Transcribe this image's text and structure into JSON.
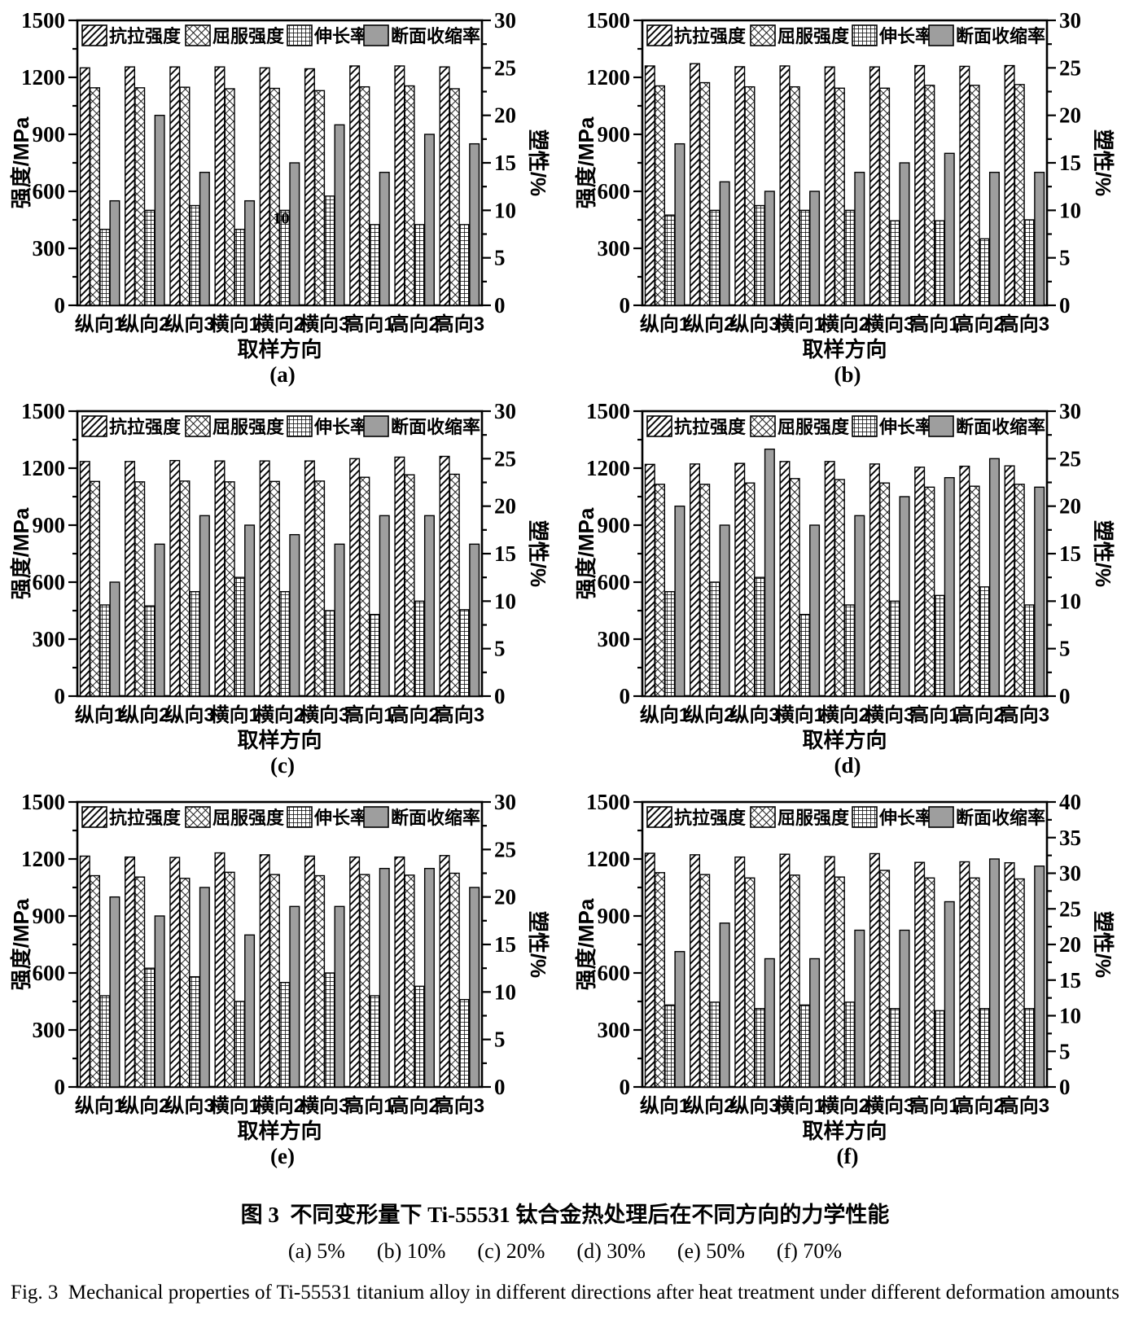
{
  "figure": {
    "caption_cn": "图 3  不同变形量下 Ti-55531 钛合金热处理后在不同方向的力学性能",
    "caption_sub": "(a) 5%      (b) 10%      (c) 20%      (d) 30%      (e) 50%      (f) 70%",
    "caption_en": "Fig. 3  Mechanical properties of Ti-55531 titanium alloy in different directions after heat treatment under different deformation amounts"
  },
  "axes": {
    "left_label": "强度/MPa",
    "right_label": "塑性/%",
    "x_label": "取样方向",
    "left_ylim": [
      0,
      1500
    ],
    "left_tick_step": 300,
    "left_minor_step": 150
  },
  "legend": [
    "抗拉强度",
    "屈服强度",
    "伸长率",
    "断面收缩率"
  ],
  "categories": [
    "纵向1",
    "纵向2",
    "纵向3",
    "横向1",
    "横向2",
    "横向3",
    "高向1",
    "高向2",
    "高向3"
  ],
  "colors": {
    "background": "#ffffff",
    "axis_stroke": "#000000",
    "bar_fill": "#ffffff",
    "reduction_fill": "#9e9e9e"
  },
  "chart_data": [
    {
      "id": "a",
      "label": "(a)",
      "deformation": "5%",
      "type": "bar",
      "right_ylim": [
        0,
        30
      ],
      "right_max": 30,
      "note": {
        "text": "10",
        "series": 2,
        "group": 4
      },
      "series": [
        {
          "name": "抗拉强度",
          "axis": "left",
          "unit": "MPa",
          "pattern": "diag",
          "values": [
            1250,
            1255,
            1255,
            1255,
            1250,
            1245,
            1260,
            1260,
            1255
          ]
        },
        {
          "name": "屈服强度",
          "axis": "left",
          "unit": "MPa",
          "pattern": "cross",
          "values": [
            1145,
            1145,
            1148,
            1140,
            1142,
            1130,
            1150,
            1155,
            1140
          ]
        },
        {
          "name": "伸长率",
          "axis": "right",
          "unit": "%",
          "pattern": "grid",
          "values": [
            8,
            10,
            10.5,
            8,
            10,
            11.5,
            8.5,
            8.5,
            8.5
          ]
        },
        {
          "name": "断面收缩率",
          "axis": "right",
          "unit": "%",
          "pattern": "solid",
          "values": [
            11,
            20,
            14,
            11,
            15,
            19,
            14,
            18,
            17
          ]
        }
      ]
    },
    {
      "id": "b",
      "label": "(b)",
      "deformation": "10%",
      "type": "bar",
      "right_ylim": [
        0,
        30
      ],
      "right_max": 30,
      "series": [
        {
          "name": "抗拉强度",
          "axis": "left",
          "unit": "MPa",
          "pattern": "diag",
          "values": [
            1260,
            1272,
            1256,
            1260,
            1255,
            1255,
            1262,
            1258,
            1262
          ]
        },
        {
          "name": "屈服强度",
          "axis": "left",
          "unit": "MPa",
          "pattern": "cross",
          "values": [
            1155,
            1172,
            1150,
            1150,
            1143,
            1143,
            1158,
            1158,
            1162
          ]
        },
        {
          "name": "伸长率",
          "axis": "right",
          "unit": "%",
          "pattern": "grid",
          "values": [
            9.5,
            10,
            10.5,
            10,
            10,
            8.9,
            8.9,
            7,
            9
          ]
        },
        {
          "name": "断面收缩率",
          "axis": "right",
          "unit": "%",
          "pattern": "solid",
          "values": [
            17,
            13,
            12,
            12,
            14,
            15,
            16,
            14,
            14
          ]
        }
      ]
    },
    {
      "id": "c",
      "label": "(c)",
      "deformation": "20%",
      "type": "bar",
      "right_ylim": [
        0,
        30
      ],
      "right_max": 30,
      "series": [
        {
          "name": "抗拉强度",
          "axis": "left",
          "unit": "MPa",
          "pattern": "diag",
          "values": [
            1235,
            1235,
            1240,
            1238,
            1238,
            1238,
            1250,
            1258,
            1262
          ]
        },
        {
          "name": "屈服强度",
          "axis": "left",
          "unit": "MPa",
          "pattern": "cross",
          "values": [
            1130,
            1128,
            1132,
            1128,
            1130,
            1132,
            1152,
            1165,
            1168
          ]
        },
        {
          "name": "伸长率",
          "axis": "right",
          "unit": "%",
          "pattern": "grid",
          "values": [
            9.6,
            9.5,
            11,
            12.5,
            11,
            9,
            8.6,
            10,
            9.1
          ]
        },
        {
          "name": "断面收缩率",
          "axis": "right",
          "unit": "%",
          "pattern": "solid",
          "values": [
            12,
            16,
            19,
            18,
            17,
            16,
            19,
            19,
            16
          ]
        }
      ]
    },
    {
      "id": "d",
      "label": "(d)",
      "deformation": "30%",
      "type": "bar",
      "right_ylim": [
        0,
        30
      ],
      "right_max": 30,
      "series": [
        {
          "name": "抗拉强度",
          "axis": "left",
          "unit": "MPa",
          "pattern": "diag",
          "values": [
            1220,
            1222,
            1225,
            1235,
            1235,
            1222,
            1205,
            1210,
            1212
          ]
        },
        {
          "name": "屈服强度",
          "axis": "left",
          "unit": "MPa",
          "pattern": "cross",
          "values": [
            1115,
            1115,
            1122,
            1145,
            1140,
            1122,
            1100,
            1105,
            1115
          ]
        },
        {
          "name": "伸长率",
          "axis": "right",
          "unit": "%",
          "pattern": "grid",
          "values": [
            11,
            12,
            12.5,
            8.6,
            9.6,
            10,
            10.6,
            11.5,
            9.6
          ]
        },
        {
          "name": "断面收缩率",
          "axis": "right",
          "unit": "%",
          "pattern": "solid",
          "values": [
            20,
            18,
            26,
            18,
            19,
            21,
            23,
            25,
            22
          ]
        }
      ]
    },
    {
      "id": "e",
      "label": "(e)",
      "deformation": "50%",
      "type": "bar",
      "right_ylim": [
        0,
        30
      ],
      "right_max": 30,
      "series": [
        {
          "name": "抗拉强度",
          "axis": "left",
          "unit": "MPa",
          "pattern": "diag",
          "values": [
            1215,
            1210,
            1208,
            1232,
            1222,
            1215,
            1210,
            1210,
            1218
          ]
        },
        {
          "name": "屈服强度",
          "axis": "left",
          "unit": "MPa",
          "pattern": "cross",
          "values": [
            1112,
            1105,
            1098,
            1130,
            1118,
            1112,
            1118,
            1115,
            1125
          ]
        },
        {
          "name": "伸长率",
          "axis": "right",
          "unit": "%",
          "pattern": "grid",
          "values": [
            9.6,
            12.5,
            11.6,
            9,
            11,
            12,
            9.6,
            10.6,
            9.2
          ]
        },
        {
          "name": "断面收缩率",
          "axis": "right",
          "unit": "%",
          "pattern": "solid",
          "values": [
            20,
            18,
            21,
            16,
            19,
            19,
            23,
            23,
            21
          ]
        }
      ]
    },
    {
      "id": "f",
      "label": "(f)",
      "deformation": "70%",
      "type": "bar",
      "right_ylim": [
        0,
        40
      ],
      "right_max": 40,
      "series": [
        {
          "name": "抗拉强度",
          "axis": "left",
          "unit": "MPa",
          "pattern": "diag",
          "values": [
            1230,
            1222,
            1210,
            1225,
            1212,
            1228,
            1182,
            1185,
            1180
          ]
        },
        {
          "name": "屈服强度",
          "axis": "left",
          "unit": "MPa",
          "pattern": "cross",
          "values": [
            1128,
            1118,
            1100,
            1115,
            1105,
            1140,
            1100,
            1100,
            1095
          ]
        },
        {
          "name": "伸长率",
          "axis": "right",
          "unit": "%",
          "pattern": "grid",
          "values": [
            11.5,
            11.9,
            11,
            11.5,
            11.9,
            11,
            10.7,
            11,
            11
          ]
        },
        {
          "name": "断面收缩率",
          "axis": "right",
          "unit": "%",
          "pattern": "solid",
          "values": [
            19,
            23,
            18,
            18,
            22,
            22,
            26,
            32,
            31
          ]
        }
      ]
    }
  ]
}
